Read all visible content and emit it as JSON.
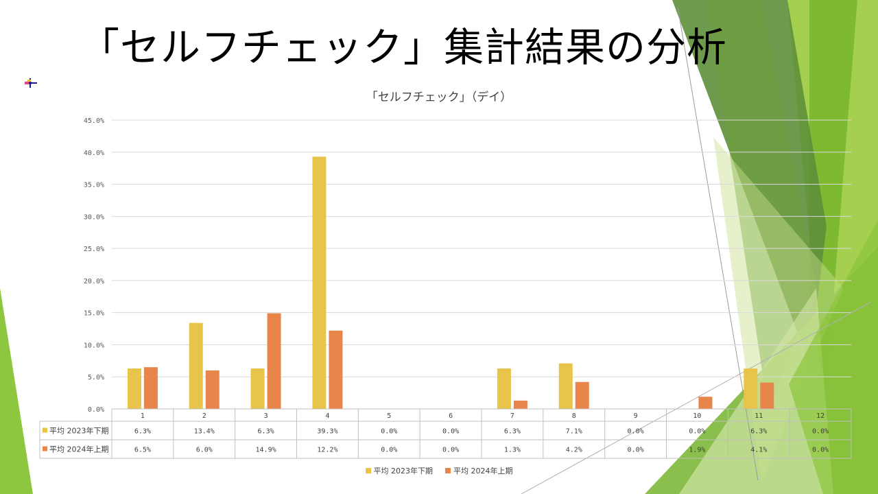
{
  "slide": {
    "title": "「セルフチェック」集計結果の分析"
  },
  "chart_data": {
    "type": "bar",
    "title": "「セルフチェック」（デイ）",
    "categories": [
      "1",
      "2",
      "3",
      "4",
      "5",
      "6",
      "7",
      "8",
      "9",
      "10",
      "11",
      "12"
    ],
    "series": [
      {
        "name": "平均 2023年下期",
        "color": "#E9C44A",
        "values": [
          6.3,
          13.4,
          6.3,
          39.3,
          0.0,
          0.0,
          6.3,
          7.1,
          0.0,
          0.0,
          6.3,
          0.0
        ],
        "labels": [
          "6.3%",
          "13.4%",
          "6.3%",
          "39.3%",
          "0.0%",
          "0.0%",
          "6.3%",
          "7.1%",
          "0.0%",
          "0.0%",
          "6.3%",
          "0.0%"
        ]
      },
      {
        "name": "平均 2024年上期",
        "color": "#E8854A",
        "values": [
          6.5,
          6.0,
          14.9,
          12.2,
          0.0,
          0.0,
          1.3,
          4.2,
          0.0,
          1.9,
          4.1,
          0.0
        ],
        "labels": [
          "6.5%",
          "6.0%",
          "14.9%",
          "12.2%",
          "0.0%",
          "0.0%",
          "1.3%",
          "4.2%",
          "0.0%",
          "1.9%",
          "4.1%",
          "0.0%"
        ]
      }
    ],
    "y_ticks": [
      "0.0%",
      "5.0%",
      "10.0%",
      "15.0%",
      "20.0%",
      "25.0%",
      "30.0%",
      "35.0%",
      "40.0%",
      "45.0%"
    ],
    "ylim": [
      0,
      45
    ],
    "grid": true,
    "legend": "bottom",
    "data_table": true
  }
}
